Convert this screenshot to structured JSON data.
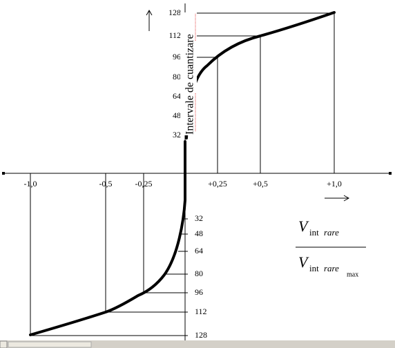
{
  "axis_label": "Intervale de cuantizare",
  "x_labels": [
    "-1,0",
    "-0,5",
    "-0,25",
    "+0,25",
    "+0,5",
    "+1,0"
  ],
  "upper_ticks": [
    "128",
    "112",
    "96",
    "80",
    "64",
    "48",
    "32"
  ],
  "lower_ticks": [
    "32",
    "48",
    "64",
    "80",
    "96",
    "112",
    "128"
  ],
  "formula": {
    "numerator": {
      "main": "V",
      "sub_a": "int",
      "sub_b": "rare"
    },
    "denominator": {
      "main": "V",
      "sub_a": "int",
      "sub_b": "rare",
      "sub_c": "max"
    }
  }
}
